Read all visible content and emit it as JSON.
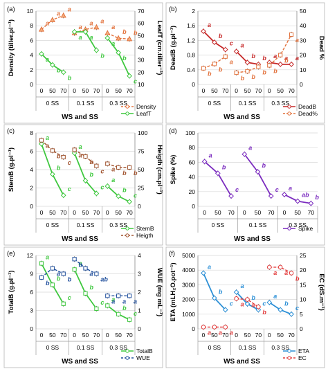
{
  "chart_data": [
    {
      "type": "line",
      "panel_label": "(a)",
      "xlabel": "WS and SS",
      "groups": [
        "0 SS",
        "0.1 SS",
        "0.3 SS"
      ],
      "ticks": [
        "0",
        "50",
        "70"
      ],
      "ylabel_left": "Density (tiller.pl⁻¹)",
      "ylabel_right": "LeafT (cm.tiller⁻¹)",
      "ylim_left": [
        0,
        10
      ],
      "yticks_left": [
        0,
        2,
        4,
        6,
        8,
        10
      ],
      "ylim_right": [
        10,
        70
      ],
      "yticks_right": [
        10,
        20,
        30,
        40,
        50,
        60,
        70
      ],
      "series": [
        {
          "name": "Density",
          "axis": "left",
          "color": "#e2703a",
          "dash": true,
          "marker": "triangle",
          "values": [
            7.5,
            8.8,
            9.4,
            7.0,
            7.5,
            7.8,
            7.0,
            6.3,
            6.2
          ],
          "labels": [
            "a",
            "a",
            "a",
            "a",
            "a",
            "a",
            "a",
            "b",
            "b"
          ]
        },
        {
          "name": "LeafT",
          "axis": "right",
          "color": "#3fc83f",
          "dash": false,
          "marker": "diamond",
          "values": [
            35,
            26,
            20,
            53,
            53,
            38,
            48,
            36,
            17
          ],
          "labels": [
            "a",
            "b",
            "b",
            "a",
            "a",
            "b",
            "a",
            "b",
            "c"
          ]
        }
      ]
    },
    {
      "type": "line",
      "panel_label": "(b)",
      "xlabel": "WS and SS",
      "groups": [
        "0 SS",
        "0.1 SS",
        "0.3 SS"
      ],
      "ticks": [
        "0",
        "50",
        "70"
      ],
      "ylabel_left": "DeadB (g.pl⁻¹)",
      "ylabel_right": "Dead %",
      "ylim_left": [
        0,
        2
      ],
      "yticks_left": [
        0,
        0.4,
        0.8,
        1.2,
        1.6,
        2
      ],
      "ylim_right": [
        0,
        50
      ],
      "yticks_right": [
        0,
        10,
        20,
        30,
        40,
        50
      ],
      "series": [
        {
          "name": "DeadB",
          "axis": "left",
          "color": "#c62828",
          "dash": false,
          "marker": "diamond",
          "values": [
            1.45,
            1.15,
            0.95,
            0.9,
            0.6,
            0.55,
            0.6,
            0.55,
            0.55
          ],
          "labels": [
            "a",
            "b",
            "c",
            "a",
            "b",
            "b",
            "a",
            "a",
            "a"
          ]
        },
        {
          "name": "Dead%",
          "axis": "right",
          "color": "#e2703a",
          "dash": true,
          "marker": "square",
          "values": [
            11,
            14,
            19,
            8,
            9,
            12,
            13,
            20,
            34
          ],
          "labels": [
            "b",
            "b",
            "a",
            "b",
            "b",
            "b",
            "b",
            "b",
            "a"
          ]
        }
      ]
    },
    {
      "type": "line",
      "panel_label": "(c)",
      "xlabel": "WS and SS",
      "groups": [
        "0 SS",
        "0.1 SS",
        "0.3 SS"
      ],
      "ticks": [
        "0",
        "50",
        "70"
      ],
      "ylabel_left": "StemB (g.pl⁻¹)",
      "ylabel_right": "Heigth (cm.pl⁻¹)",
      "ylim_left": [
        0,
        8
      ],
      "yticks_left": [
        0,
        2,
        4,
        6,
        8
      ],
      "ylim_right": [
        0,
        100
      ],
      "yticks_right": [
        0,
        25,
        50,
        75,
        100
      ],
      "series": [
        {
          "name": "StemB",
          "axis": "left",
          "color": "#3fc83f",
          "dash": false,
          "marker": "diamond",
          "values": [
            6.8,
            3.5,
            1.2,
            5.8,
            2.8,
            1.4,
            2.2,
            1.1,
            0.5
          ],
          "labels": [
            "a",
            "b",
            "c",
            "a",
            "b",
            "c",
            "a",
            "b",
            "c"
          ]
        },
        {
          "name": "Heigth",
          "axis": "right",
          "color": "#a0522d",
          "dash": true,
          "marker": "square",
          "values": [
            90,
            76,
            67,
            77,
            68,
            55,
            58,
            53,
            53
          ],
          "labels": [
            "a",
            "b",
            "c",
            "a",
            "b",
            "c",
            "a",
            "b",
            "b"
          ]
        }
      ]
    },
    {
      "type": "line",
      "panel_label": "(d)",
      "xlabel": "WS and SS",
      "groups": [
        "0 SS",
        "0.1 SS",
        "0.3 SS"
      ],
      "ticks": [
        "0",
        "50",
        "70"
      ],
      "ylabel_left": "Spike (%)",
      "ylim_left": [
        0,
        100
      ],
      "yticks_left": [
        0,
        20,
        40,
        60,
        80,
        100
      ],
      "series": [
        {
          "name": "Spike",
          "axis": "left",
          "color": "#7b2cbf",
          "dash": false,
          "marker": "diamond",
          "values": [
            61,
            45,
            14,
            71,
            47,
            14,
            16,
            7,
            4
          ],
          "labels": [
            "a",
            "b",
            "c",
            "a",
            "b",
            "c",
            "a",
            "ab",
            "b"
          ]
        }
      ]
    },
    {
      "type": "line",
      "panel_label": "(e)",
      "xlabel": "WS and SS",
      "groups": [
        "0 SS",
        "0.1 SS",
        "0.3 SS"
      ],
      "ticks": [
        "0",
        "50",
        "70"
      ],
      "ylabel_left": "TotalB (g.pl⁻¹)",
      "ylabel_right": "WUE (mg mL⁻¹)",
      "ylim_left": [
        0,
        12
      ],
      "yticks_left": [
        0,
        3,
        6,
        9,
        12
      ],
      "ylim_right": [
        0,
        4
      ],
      "yticks_right": [
        0,
        1,
        2,
        3,
        4
      ],
      "series": [
        {
          "name": "TotalB",
          "axis": "left",
          "color": "#3fc83f",
          "dash": false,
          "marker": "square",
          "values": [
            10.7,
            7.2,
            4.1,
            9.7,
            5.8,
            3.3,
            3.8,
            2.4,
            1.5
          ],
          "labels": [
            "a",
            "b",
            "c",
            "a",
            "b",
            "c",
            "a",
            "b",
            "c"
          ]
        },
        {
          "name": "WUE",
          "axis": "right",
          "color": "#1f4e9c",
          "dash": true,
          "marker": "square",
          "values": [
            2.8,
            3.3,
            3.0,
            3.8,
            3.3,
            3.0,
            1.8,
            1.8,
            1.8
          ],
          "labels": [
            "b",
            "a",
            "b",
            "b",
            "a",
            "ab",
            "a",
            "a",
            "a"
          ]
        }
      ]
    },
    {
      "type": "line",
      "panel_label": "(f)",
      "xlabel": "WS and SS",
      "groups": [
        "0 SS",
        "0.1 SS",
        "0.3 SS"
      ],
      "ticks": [
        "0",
        "50",
        "70"
      ],
      "ylabel_left": "ETA (mLH₂O.pot⁻¹)",
      "ylabel_right": "EC (dS.m⁻¹)",
      "ylim_left": [
        0,
        5000
      ],
      "yticks_left": [
        0,
        1000,
        2000,
        3000,
        4000,
        5000
      ],
      "ylim_right": [
        0,
        25
      ],
      "yticks_right": [
        0,
        5,
        10,
        15,
        20,
        25
      ],
      "series": [
        {
          "name": "ETA",
          "axis": "left",
          "color": "#2b8fd6",
          "dash": false,
          "marker": "diamond",
          "values": [
            3800,
            2100,
            1300,
            2500,
            1700,
            1300,
            1800,
            1300,
            1000
          ],
          "labels": [
            "a",
            "b",
            "c",
            "a",
            "b",
            "c",
            "a",
            "b",
            "c"
          ]
        },
        {
          "name": "EC",
          "axis": "right",
          "color": "#e23a3a",
          "dash": true,
          "marker": "circle",
          "values": [
            0.6,
            0.6,
            0.6,
            10.3,
            10.0,
            7.5,
            21.0,
            21.0,
            19.0
          ],
          "labels": [
            "a",
            "a",
            "a",
            "a",
            "a",
            "b",
            "a",
            "a",
            "b"
          ]
        }
      ]
    }
  ]
}
